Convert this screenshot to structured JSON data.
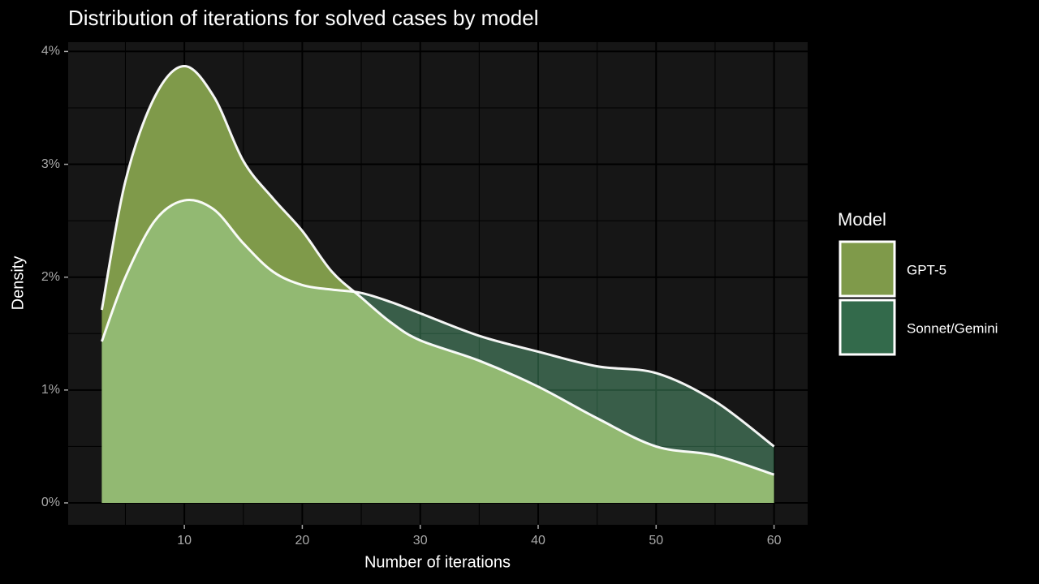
{
  "chart_data": {
    "type": "area",
    "title": "Distribution of iterations for solved cases by model",
    "x_label": "Number of iterations",
    "y_label": "Density",
    "legend_title": "Model",
    "x": [
      3,
      5,
      7.5,
      10,
      12.5,
      15,
      17.5,
      20,
      22.5,
      25,
      27.5,
      30,
      35,
      40,
      45,
      50,
      55,
      60
    ],
    "series": [
      {
        "name": "GPT-5",
        "color": "#7f9a4a",
        "values": [
          1.71,
          2.85,
          3.6,
          3.87,
          3.6,
          3.03,
          2.7,
          2.41,
          2.05,
          1.82,
          1.6,
          1.44,
          1.26,
          1.03,
          0.75,
          0.5,
          0.42,
          0.25
        ]
      },
      {
        "name": "Sonnet/Gemini",
        "color": "#336a4b",
        "values": [
          1.43,
          2.0,
          2.5,
          2.68,
          2.6,
          2.3,
          2.05,
          1.93,
          1.89,
          1.86,
          1.78,
          1.68,
          1.48,
          1.34,
          1.21,
          1.15,
          0.9,
          0.5
        ]
      }
    ],
    "xlim": [
      0.15,
      62.85
    ],
    "xticks": [
      10,
      20,
      30,
      40,
      50,
      60
    ],
    "ylim": [
      -0.194,
      4.082
    ],
    "yticks": [
      {
        "value": 0,
        "label": "0%"
      },
      {
        "value": 1,
        "label": "1%"
      },
      {
        "value": 2,
        "label": "2%"
      },
      {
        "value": 3,
        "label": "3%"
      },
      {
        "value": 4,
        "label": "4%"
      }
    ],
    "grid": true,
    "legend": "right"
  }
}
